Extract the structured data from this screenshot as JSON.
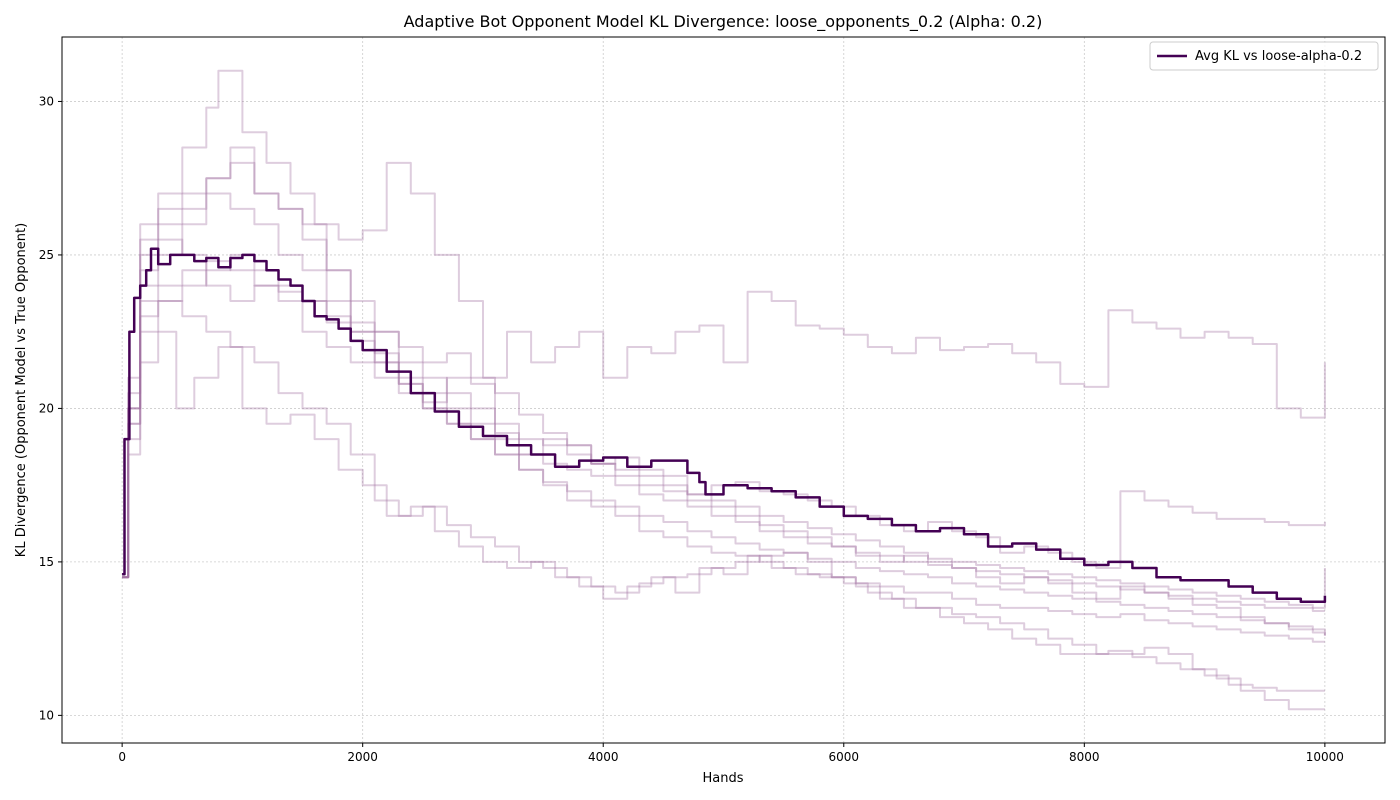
{
  "chart_data": {
    "type": "line",
    "title": "Adaptive Bot Opponent Model KL Divergence: loose_opponents_0.2 (Alpha: 0.2)",
    "xlabel": "Hands",
    "ylabel": "KL Divergence (Opponent Model vs True Opponent)",
    "xlim": [
      -500,
      10500
    ],
    "ylim": [
      9.1,
      32.1
    ],
    "xticks": [
      0,
      2000,
      4000,
      6000,
      8000,
      10000
    ],
    "yticks": [
      10,
      15,
      20,
      25,
      30
    ],
    "grid": true,
    "legend_position": "upper-right",
    "colors": {
      "average": "#440154",
      "individual": "#a070a0"
    },
    "average_series": {
      "name": "Avg KL vs loose-alpha-0.2",
      "x": [
        0,
        20,
        60,
        100,
        150,
        200,
        240,
        300,
        400,
        500,
        600,
        700,
        800,
        900,
        1000,
        1100,
        1200,
        1300,
        1400,
        1500,
        1600,
        1700,
        1800,
        1900,
        2000,
        2200,
        2400,
        2600,
        2800,
        3000,
        3200,
        3400,
        3600,
        3800,
        4000,
        4200,
        4400,
        4600,
        4700,
        4800,
        4850,
        5000,
        5200,
        5400,
        5600,
        5800,
        6000,
        6200,
        6400,
        6600,
        6800,
        7000,
        7200,
        7400,
        7600,
        7800,
        8000,
        8200,
        8400,
        8600,
        8800,
        9000,
        9200,
        9400,
        9600,
        9800,
        10000
      ],
      "y": [
        14.6,
        19.0,
        22.5,
        23.6,
        24.0,
        24.5,
        25.2,
        24.7,
        25.0,
        25.0,
        24.8,
        24.9,
        24.6,
        24.9,
        25.0,
        24.8,
        24.5,
        24.2,
        24.0,
        23.5,
        23.0,
        22.9,
        22.6,
        22.2,
        21.9,
        21.2,
        20.5,
        19.9,
        19.4,
        19.1,
        18.8,
        18.5,
        18.1,
        18.3,
        18.4,
        18.1,
        18.3,
        18.3,
        17.9,
        17.6,
        17.2,
        17.5,
        17.4,
        17.3,
        17.1,
        16.8,
        16.5,
        16.4,
        16.2,
        16.0,
        16.1,
        15.9,
        15.5,
        15.6,
        15.4,
        15.1,
        14.9,
        15.0,
        14.8,
        14.5,
        14.4,
        14.4,
        14.2,
        14.0,
        13.8,
        13.7,
        13.9
      ]
    },
    "individual_runs": [
      {
        "x": [
          0,
          50,
          150,
          300,
          500,
          700,
          800,
          1000,
          1200,
          1400,
          1600,
          1800,
          2000,
          2200,
          2400,
          2600,
          2800,
          3000,
          3200,
          3400,
          3600,
          3800,
          4000,
          4200,
          4400,
          4600,
          4800,
          5000,
          5200,
          5400,
          5600,
          5800,
          6000,
          6200,
          6400,
          6600,
          6800,
          7000,
          7200,
          7400,
          7600,
          7800,
          8000,
          8200,
          8400,
          8600,
          8800,
          9000,
          9200,
          9400,
          9600,
          9800,
          10000
        ],
        "y": [
          14.5,
          20.0,
          26.0,
          27.0,
          28.5,
          29.8,
          31.0,
          29.0,
          28.0,
          27.0,
          26.0,
          25.5,
          25.8,
          28.0,
          27.0,
          25.0,
          23.5,
          21.0,
          22.5,
          21.5,
          22.0,
          22.5,
          21.0,
          22.0,
          21.8,
          22.5,
          22.7,
          21.5,
          23.8,
          23.5,
          22.7,
          22.6,
          22.4,
          22.0,
          21.8,
          22.3,
          21.9,
          22.0,
          22.1,
          21.8,
          21.5,
          20.8,
          20.7,
          23.2,
          22.8,
          22.6,
          22.3,
          22.5,
          22.3,
          22.1,
          20.0,
          19.7,
          21.5
        ]
      },
      {
        "x": [
          0,
          50,
          150,
          300,
          500,
          700,
          900,
          1100,
          1300,
          1500,
          1700,
          1900,
          2100,
          2300,
          2500,
          2700,
          2900,
          3100,
          3300,
          3500,
          3700,
          3900,
          4100,
          4300,
          4500,
          4700,
          4900,
          5100,
          5300,
          5500,
          5700,
          5900,
          6100,
          6300,
          6500,
          6700,
          6900,
          7100,
          7300,
          7500,
          7700,
          7900,
          8100,
          8300,
          8500,
          8700,
          8900,
          9100,
          9300,
          9500,
          9700,
          9900,
          10000
        ],
        "y": [
          14.5,
          19.5,
          24.0,
          25.0,
          26.0,
          27.5,
          28.5,
          27.0,
          26.5,
          26.0,
          24.5,
          22.5,
          21.5,
          20.8,
          20.2,
          21.0,
          20.8,
          19.2,
          18.5,
          19.0,
          18.8,
          18.2,
          18.4,
          18.0,
          17.8,
          17.2,
          17.5,
          17.6,
          17.3,
          17.2,
          17.0,
          16.8,
          16.5,
          16.2,
          16.0,
          16.3,
          16.0,
          15.8,
          15.3,
          15.5,
          15.3,
          15.0,
          14.8,
          17.3,
          17.0,
          16.8,
          16.6,
          16.4,
          16.4,
          16.3,
          16.2,
          16.2,
          16.3
        ]
      },
      {
        "x": [
          0,
          50,
          150,
          300,
          500,
          700,
          900,
          1100,
          1300,
          1500,
          1700,
          1900,
          2100,
          2300,
          2500,
          2700,
          2900,
          3100,
          3300,
          3500,
          3700,
          3900,
          4100,
          4300,
          4500,
          4700,
          4900,
          5100,
          5300,
          5500,
          5700,
          5900,
          6100,
          6300,
          6500,
          6700,
          6900,
          7100,
          7300,
          7500,
          7700,
          7900,
          8100,
          8300,
          8500,
          8700,
          8900,
          9100,
          9300,
          9500,
          9700,
          9900,
          10000
        ],
        "y": [
          14.5,
          21.0,
          25.0,
          26.0,
          26.5,
          27.0,
          26.5,
          26.0,
          25.0,
          24.5,
          23.5,
          22.8,
          22.5,
          22.0,
          21.5,
          21.8,
          21.0,
          20.5,
          19.8,
          19.2,
          18.8,
          18.2,
          17.8,
          17.5,
          17.3,
          17.0,
          16.8,
          16.5,
          16.2,
          16.0,
          15.8,
          15.5,
          15.2,
          15.0,
          15.2,
          15.0,
          14.8,
          14.5,
          14.3,
          14.5,
          14.3,
          14.0,
          13.8,
          14.2,
          14.0,
          13.8,
          13.6,
          13.5,
          13.2,
          13.0,
          12.8,
          12.7,
          12.6
        ]
      },
      {
        "x": [
          0,
          50,
          150,
          300,
          450,
          600,
          800,
          1000,
          1200,
          1400,
          1600,
          1800,
          2000,
          2200,
          2400,
          2600,
          2800,
          3000,
          3200,
          3400,
          3600,
          3800,
          4000,
          4200,
          4400,
          4600,
          4800,
          5000,
          5200,
          5400,
          5600,
          5800,
          6000,
          6200,
          6400,
          6600,
          6800,
          7000,
          7200,
          7400,
          7600,
          7800,
          8000,
          8200,
          8400,
          8600,
          8800,
          9000,
          9200,
          9400,
          9600,
          9800,
          10000
        ],
        "y": [
          14.5,
          18.5,
          21.5,
          22.5,
          20.0,
          21.0,
          22.0,
          20.0,
          19.5,
          19.8,
          19.0,
          18.0,
          17.5,
          16.5,
          16.8,
          16.0,
          15.5,
          15.0,
          14.8,
          15.0,
          14.5,
          14.2,
          13.8,
          14.2,
          14.5,
          14.0,
          14.8,
          14.6,
          15.2,
          14.8,
          14.6,
          14.5,
          14.3,
          14.0,
          13.8,
          13.5,
          13.2,
          13.0,
          12.8,
          12.5,
          12.3,
          12.0,
          12.0,
          12.1,
          11.9,
          11.7,
          11.5,
          11.3,
          11.0,
          10.9,
          10.8,
          10.8,
          10.8
        ]
      },
      {
        "x": [
          0,
          50,
          150,
          300,
          500,
          700,
          900,
          1100,
          1300,
          1500,
          1700,
          1900,
          2100,
          2300,
          2500,
          2700,
          2900,
          3100,
          3300,
          3500,
          3700,
          3900,
          4100,
          4300,
          4500,
          4700,
          4900,
          5100,
          5300,
          5500,
          5700,
          5900,
          6100,
          6300,
          6500,
          6700,
          6900,
          7100,
          7300,
          7500,
          7700,
          7900,
          8100,
          8300,
          8500,
          8700,
          8900,
          9100,
          9300,
          9500,
          9700,
          9900,
          10000
        ],
        "y": [
          14.5,
          20.0,
          23.0,
          23.5,
          23.0,
          22.5,
          22.0,
          21.5,
          20.5,
          20.0,
          19.5,
          18.5,
          17.0,
          16.5,
          16.8,
          16.2,
          15.8,
          15.5,
          15.0,
          14.8,
          14.5,
          14.2,
          14.0,
          14.3,
          14.5,
          14.6,
          14.8,
          15.0,
          15.2,
          15.3,
          15.0,
          14.5,
          14.2,
          13.8,
          13.5,
          13.5,
          13.3,
          13.2,
          13.0,
          12.8,
          12.5,
          12.3,
          12.0,
          12.0,
          12.2,
          12.0,
          11.5,
          11.2,
          10.8,
          10.5,
          10.2,
          10.2,
          10.2
        ]
      },
      {
        "x": [
          0,
          50,
          150,
          300,
          500,
          700,
          900,
          1100,
          1300,
          1500,
          1700,
          1900,
          2100,
          2300,
          2500,
          2700,
          2900,
          3100,
          3300,
          3500,
          3700,
          3900,
          4100,
          4300,
          4500,
          4700,
          4900,
          5100,
          5300,
          5500,
          5700,
          5900,
          6100,
          6300,
          6500,
          6700,
          6900,
          7100,
          7300,
          7500,
          7700,
          7900,
          8100,
          8300,
          8500,
          8700,
          8900,
          9100,
          9300,
          9500,
          9700,
          9900,
          10000
        ],
        "y": [
          14.5,
          20.0,
          24.5,
          25.5,
          25.0,
          24.0,
          23.5,
          24.0,
          23.5,
          22.5,
          22.0,
          21.5,
          21.0,
          20.5,
          20.0,
          19.5,
          19.0,
          18.5,
          18.0,
          17.5,
          17.0,
          16.8,
          16.5,
          16.0,
          15.8,
          15.5,
          15.3,
          15.2,
          15.0,
          14.8,
          14.6,
          14.5,
          14.3,
          14.2,
          14.0,
          14.0,
          13.8,
          13.6,
          13.5,
          13.5,
          13.4,
          13.3,
          13.2,
          13.3,
          13.1,
          13.0,
          12.9,
          12.8,
          12.7,
          12.6,
          12.5,
          12.4,
          12.4
        ]
      },
      {
        "x": [
          0,
          50,
          150,
          300,
          500,
          700,
          900,
          1100,
          1300,
          1500,
          1700,
          1900,
          2100,
          2300,
          2500,
          2700,
          2900,
          3100,
          3300,
          3500,
          3700,
          3900,
          4100,
          4300,
          4500,
          4700,
          4900,
          5100,
          5300,
          5500,
          5700,
          5900,
          6100,
          6300,
          6500,
          6700,
          6900,
          7100,
          7300,
          7500,
          7700,
          7900,
          8100,
          8300,
          8500,
          8700,
          8900,
          9100,
          9300,
          9500,
          9700,
          9900,
          10000
        ],
        "y": [
          14.5,
          19.5,
          23.5,
          24.0,
          24.5,
          24.8,
          24.5,
          24.0,
          23.8,
          23.5,
          23.0,
          22.5,
          21.8,
          21.0,
          20.5,
          20.0,
          19.5,
          19.0,
          18.5,
          18.2,
          18.0,
          17.8,
          17.5,
          17.2,
          17.0,
          16.8,
          16.5,
          16.3,
          16.0,
          15.8,
          15.6,
          15.5,
          15.3,
          15.2,
          15.0,
          14.9,
          14.8,
          14.7,
          14.6,
          14.5,
          14.4,
          14.3,
          14.2,
          14.1,
          14.0,
          13.9,
          13.8,
          13.7,
          13.6,
          13.5,
          13.5,
          13.4,
          13.4
        ]
      },
      {
        "x": [
          0,
          50,
          150,
          300,
          500,
          700,
          900,
          1100,
          1300,
          1500,
          1700,
          1900,
          2100,
          2300,
          2500,
          2700,
          2900,
          3100,
          3300,
          3500,
          3700,
          3900,
          4100,
          4300,
          4500,
          4700,
          4900,
          5100,
          5300,
          5500,
          5700,
          5900,
          6100,
          6300,
          6500,
          6700,
          6900,
          7100,
          7300,
          7500,
          7700,
          7900,
          8100,
          8300,
          8500,
          8700,
          8900,
          9100,
          9300,
          9500,
          9700,
          9900,
          10000
        ],
        "y": [
          14.5,
          19.0,
          22.5,
          23.5,
          24.0,
          24.5,
          25.0,
          24.5,
          24.0,
          23.5,
          22.8,
          22.2,
          21.5,
          20.8,
          20.0,
          19.5,
          19.0,
          18.5,
          18.0,
          17.6,
          17.3,
          17.0,
          16.8,
          16.5,
          16.3,
          16.0,
          15.8,
          15.6,
          15.4,
          15.3,
          15.1,
          15.0,
          14.8,
          14.7,
          14.6,
          14.5,
          14.3,
          14.2,
          14.1,
          14.0,
          13.9,
          13.8,
          13.7,
          13.6,
          13.5,
          13.4,
          13.3,
          13.2,
          13.1,
          13.0,
          12.9,
          12.8,
          12.6
        ]
      },
      {
        "x": [
          0,
          50,
          150,
          300,
          500,
          700,
          900,
          1100,
          1300,
          1500,
          1700,
          1900,
          2100,
          2300,
          2500,
          2700,
          2900,
          3100,
          3300,
          3500,
          3700,
          3900,
          4100,
          4300,
          4500,
          4700,
          4900,
          5100,
          5300,
          5500,
          5700,
          5900,
          6100,
          6300,
          6500,
          6700,
          6900,
          7100,
          7300,
          7500,
          7700,
          7900,
          8100,
          8300,
          8500,
          8700,
          8900,
          9100,
          9300,
          9500,
          9700,
          9900,
          10000
        ],
        "y": [
          14.5,
          20.5,
          25.5,
          26.5,
          27.0,
          27.5,
          28.0,
          27.0,
          26.5,
          25.5,
          24.5,
          23.5,
          22.5,
          21.5,
          21.0,
          20.5,
          20.0,
          19.5,
          19.0,
          18.8,
          18.5,
          18.2,
          18.0,
          17.8,
          17.5,
          17.2,
          17.0,
          16.8,
          16.5,
          16.3,
          16.1,
          15.9,
          15.7,
          15.5,
          15.3,
          15.1,
          15.0,
          14.9,
          14.8,
          14.7,
          14.6,
          14.5,
          14.4,
          14.3,
          14.2,
          14.1,
          14.0,
          13.9,
          13.8,
          13.7,
          13.6,
          13.5,
          14.8
        ]
      }
    ]
  }
}
